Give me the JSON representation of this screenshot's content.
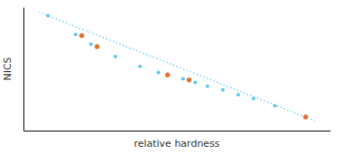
{
  "chart_data": {
    "type": "scatter",
    "xlabel": "relative hardness",
    "ylabel": "NICS",
    "xlim": [
      0,
      1.0
    ],
    "ylim": [
      0,
      1.0
    ],
    "tick_labels": false,
    "grid": false,
    "series": [
      {
        "type": "line",
        "line_style": "dotted",
        "color": "#5bc8f5",
        "x": [
          0.05,
          0.95
        ],
        "values": [
          0.96,
          0.08
        ]
      },
      {
        "type": "scatter",
        "marker": "circle",
        "color": "#5bc8f5",
        "x": [
          0.08,
          0.17,
          0.22,
          0.3,
          0.38,
          0.44,
          0.47,
          0.52,
          0.56,
          0.6,
          0.65,
          0.7,
          0.75,
          0.82,
          0.92
        ],
        "values": [
          0.93,
          0.78,
          0.7,
          0.6,
          0.52,
          0.47,
          0.46,
          0.42,
          0.39,
          0.36,
          0.33,
          0.29,
          0.26,
          0.2,
          0.12
        ]
      },
      {
        "type": "scatter",
        "marker": "circle",
        "color": "#e07030",
        "x": [
          0.19,
          0.24,
          0.47,
          0.54,
          0.92
        ],
        "values": [
          0.77,
          0.68,
          0.45,
          0.41,
          0.11
        ]
      }
    ]
  }
}
